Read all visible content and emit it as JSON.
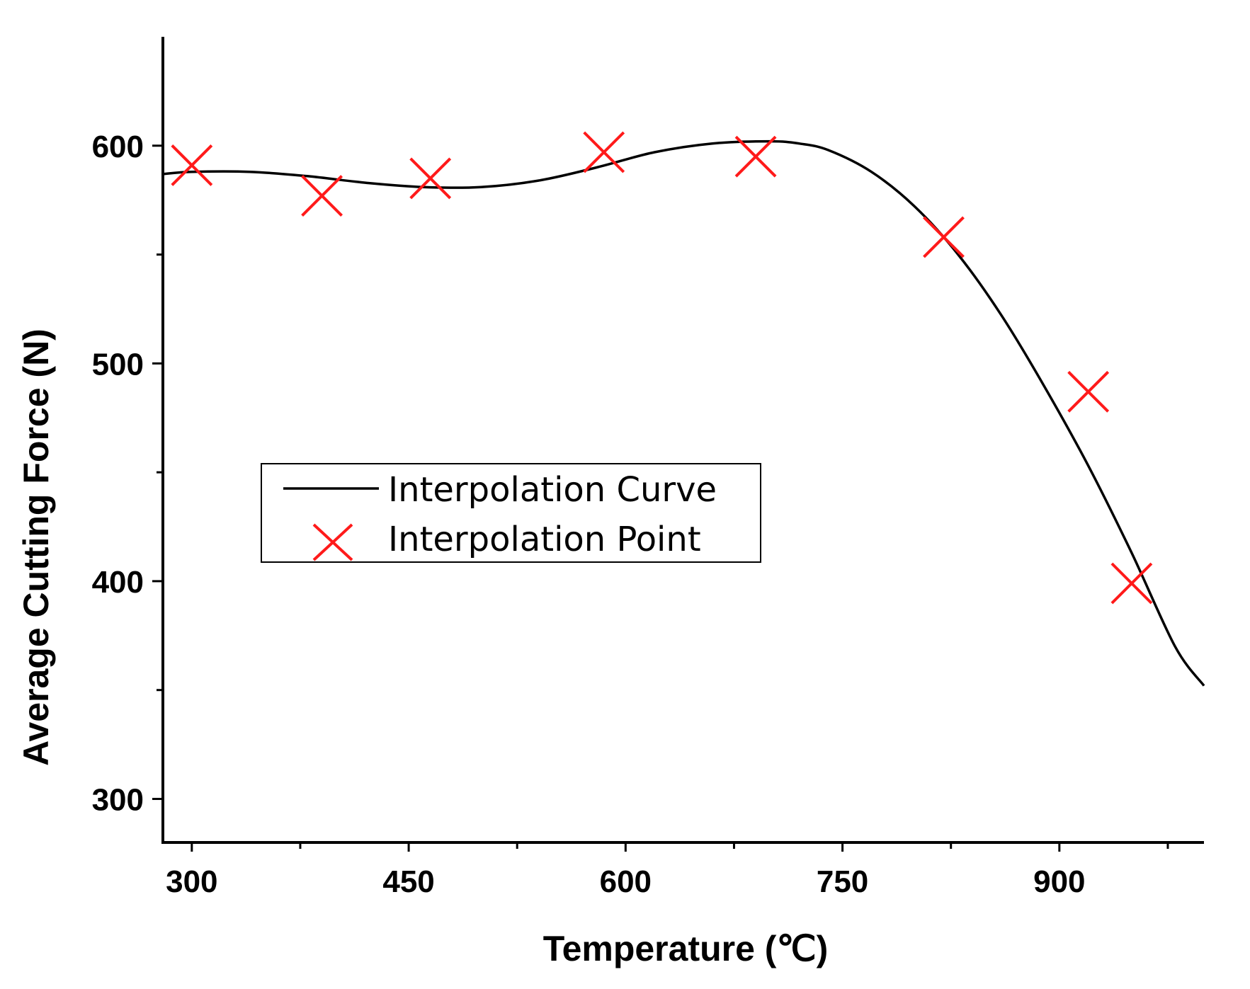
{
  "chart_data": {
    "type": "line",
    "title": "",
    "xlabel": "Temperature (℃)",
    "ylabel": "Average Cutting Force (N)",
    "xlim": [
      280,
      1000
    ],
    "ylim": [
      280,
      650
    ],
    "x_ticks": [
      300,
      450,
      600,
      750,
      900
    ],
    "x_tick_labels": [
      "300",
      "450",
      "600",
      "750",
      "900"
    ],
    "x_minor_ticks": [
      375,
      525,
      675,
      825,
      975
    ],
    "y_ticks": [
      300,
      400,
      500,
      600
    ],
    "y_tick_labels": [
      "300",
      "400",
      "500",
      "600"
    ],
    "y_minor_ticks": [
      350,
      450,
      550
    ],
    "grid": false,
    "legend_position": "center-left",
    "series": [
      {
        "name": "Interpolation Curve",
        "kind": "line",
        "color": "#000000",
        "x": [
          280,
          300,
          340,
          380,
          420,
          460,
          500,
          540,
          580,
          620,
          660,
          700,
          720,
          740,
          770,
          800,
          830,
          860,
          890,
          920,
          950,
          980,
          1000
        ],
        "y": [
          587,
          588,
          588,
          586,
          583,
          581,
          581,
          584,
          590,
          597,
          601,
          602,
          601,
          598,
          588,
          572,
          550,
          522,
          489,
          453,
          413,
          370,
          352
        ]
      },
      {
        "name": "Interpolation Point",
        "kind": "scatter",
        "marker": "x",
        "color": "#ff1a1a",
        "x": [
          300,
          390,
          465,
          585,
          690,
          820,
          920,
          950
        ],
        "y": [
          591,
          577,
          585,
          597,
          595,
          558,
          487,
          399
        ]
      }
    ]
  }
}
